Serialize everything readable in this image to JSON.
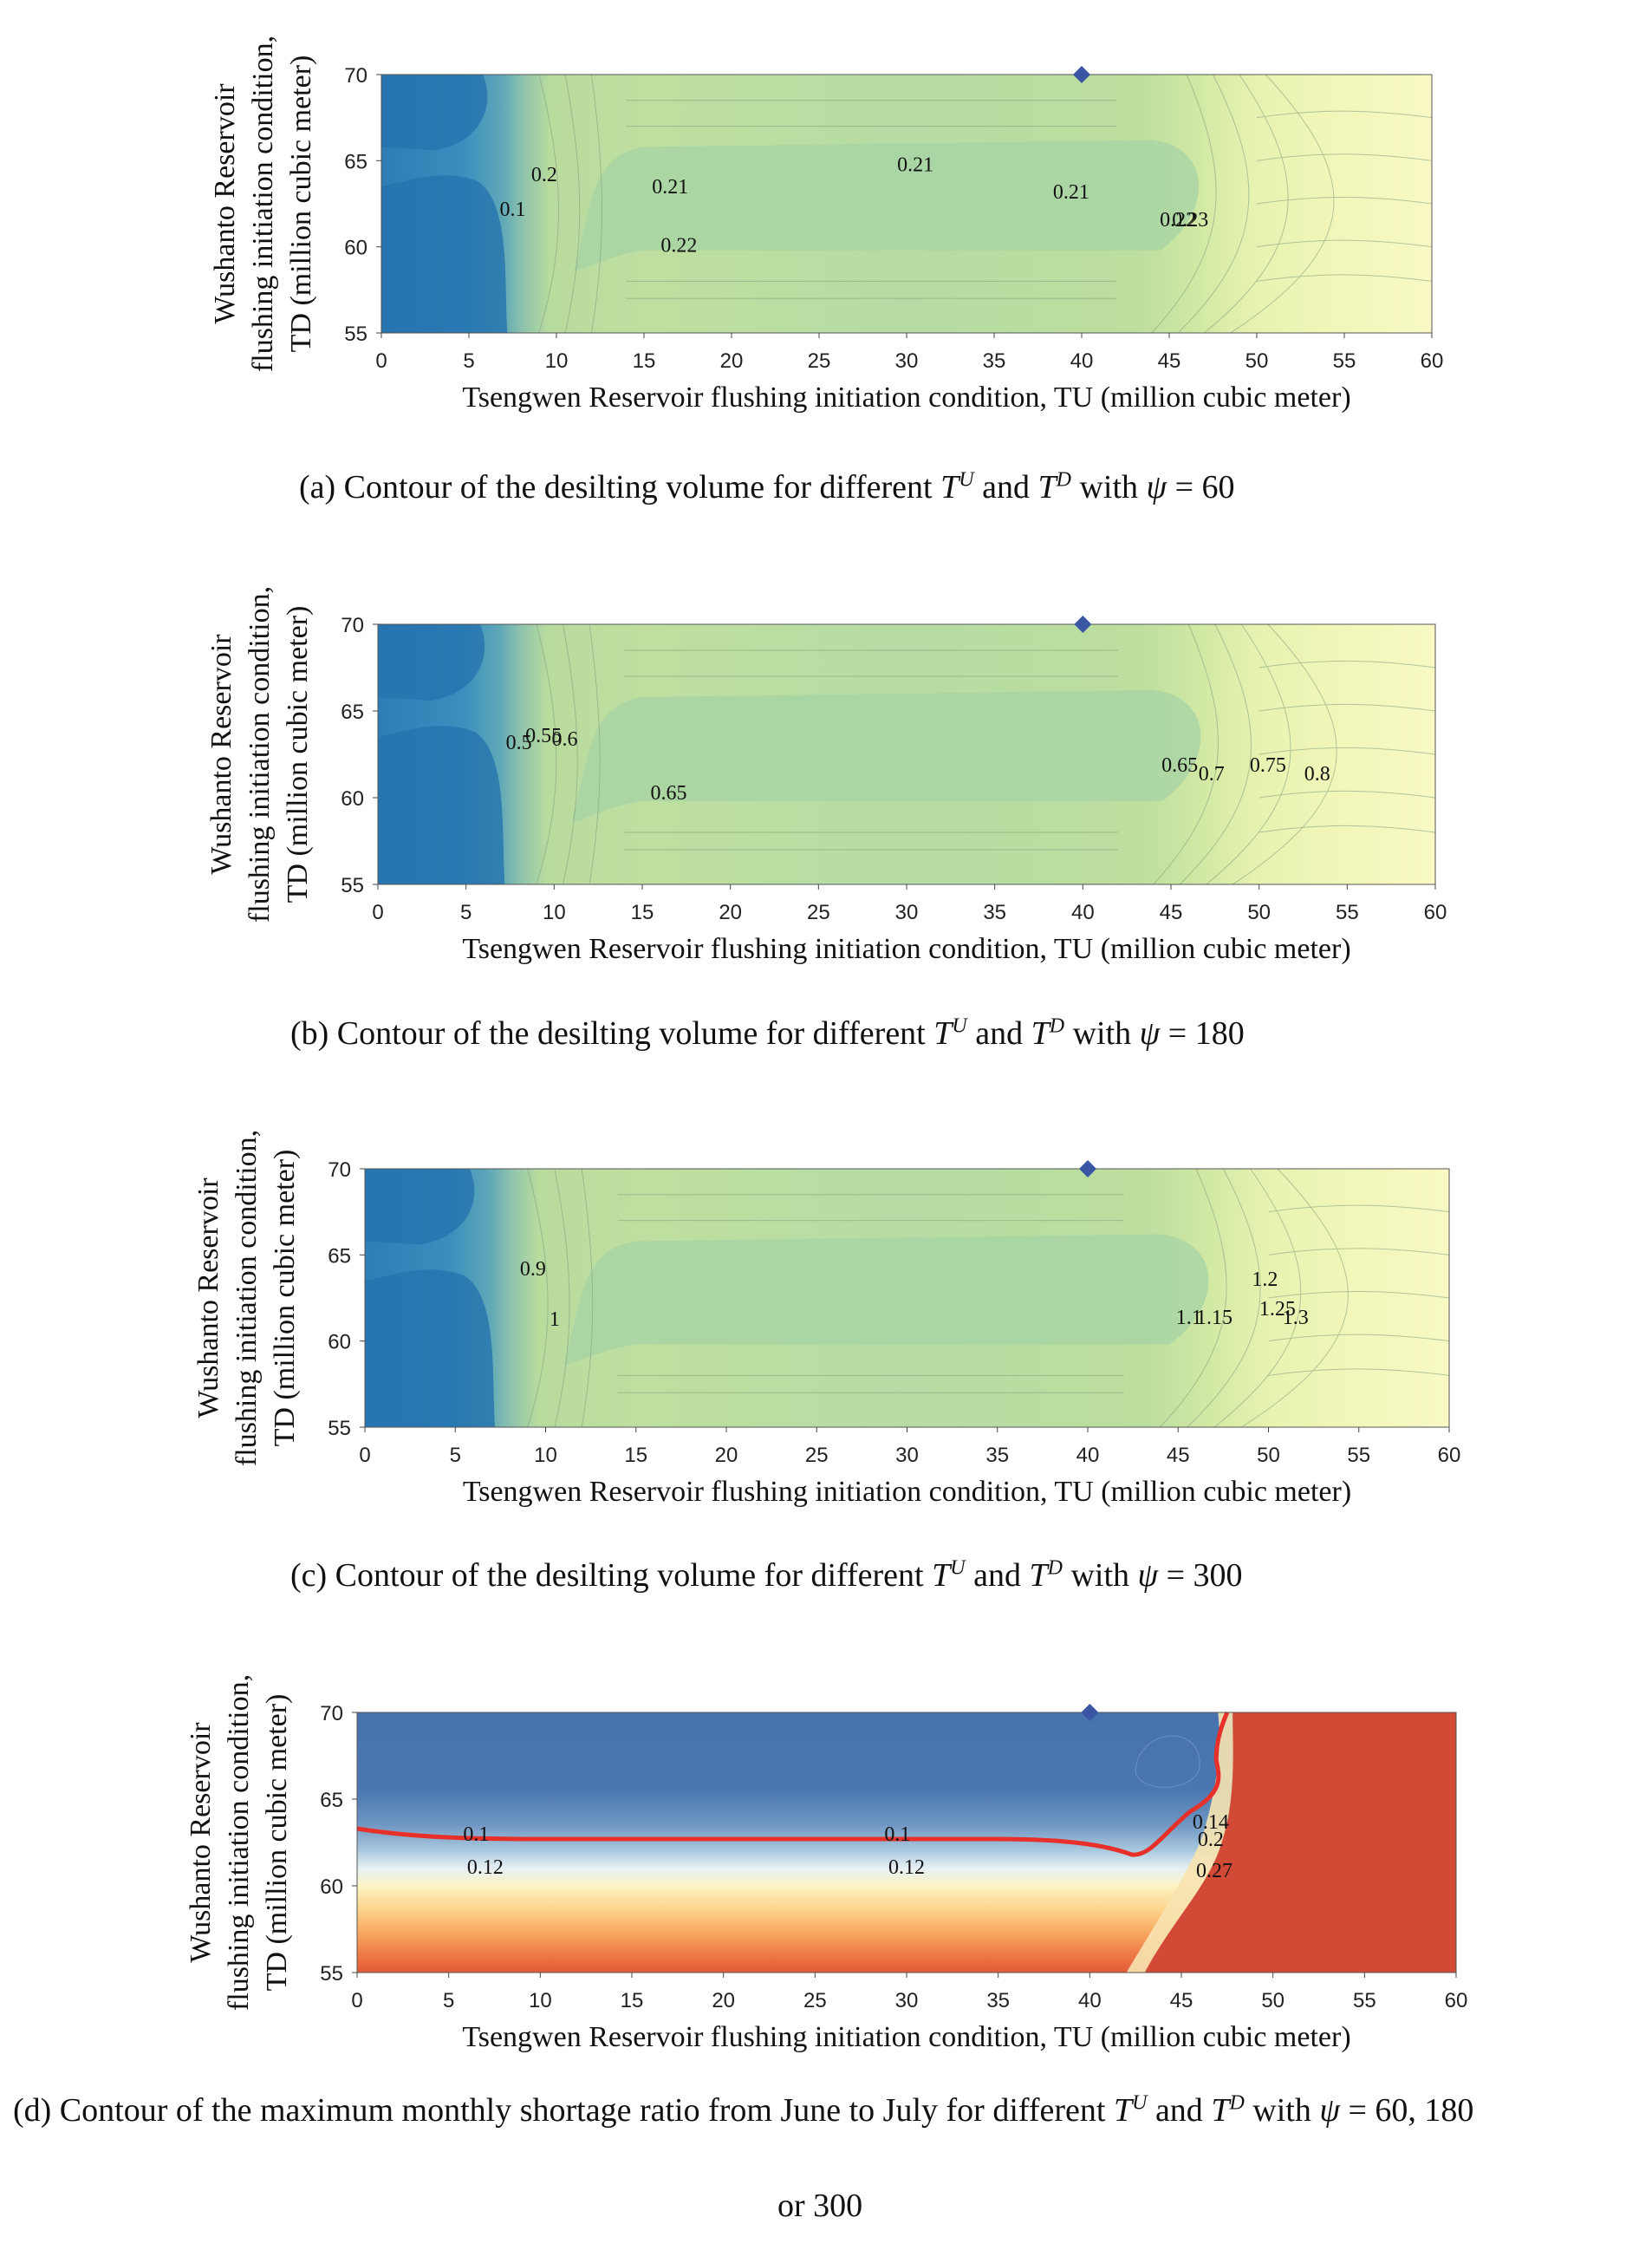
{
  "chart_data": [
    {
      "type": "contour",
      "caption": {
        "prefix": "(a) Contour of the desilting volume for different ",
        "T": "T",
        "U": "U",
        "and": " and ",
        "T2": "T",
        "D": "D",
        "with": " with ",
        "psi": "ψ",
        "suffix": " = 60"
      },
      "xlabel": "Tsengwen Reservoir flushing initiation condition, TU (million cubic meter)",
      "ylabel_lines": [
        "Wushanto Reservoir",
        "flushing initiation condition,",
        "TD (million cubic meter)"
      ],
      "xlim": [
        0,
        60
      ],
      "ylim": [
        55,
        70
      ],
      "xticks": [
        "0",
        "5",
        "10",
        "15",
        "20",
        "25",
        "30",
        "35",
        "40",
        "45",
        "50",
        "55",
        "60"
      ],
      "yticks": [
        "55",
        "60",
        "65",
        "70"
      ],
      "marker": {
        "x": 40,
        "y": 70,
        "shape": "diamond",
        "color": "#3A55A4"
      },
      "contour_labels": [
        {
          "text": "0.21",
          "x": 16.5,
          "y": 63.1
        },
        {
          "text": "0.21",
          "x": 30.5,
          "y": 64.4
        },
        {
          "text": "0.21",
          "x": 39.4,
          "y": 62.8
        },
        {
          "text": "0.22",
          "x": 17,
          "y": 59.7
        },
        {
          "text": "0.22",
          "x": 45.5,
          "y": 61.2
        },
        {
          "text": "0.23",
          "x": 46.2,
          "y": 61.2
        },
        {
          "text": "0.1",
          "x": 7.5,
          "y": 61.8
        },
        {
          "text": "0.2",
          "x": 9.3,
          "y": 63.8
        }
      ]
    },
    {
      "type": "contour",
      "caption": {
        "prefix": "(b) Contour of the desilting volume for different ",
        "T": "T",
        "U": "U",
        "and": " and ",
        "T2": "T",
        "D": "D",
        "with": " with ",
        "psi": "ψ",
        "suffix": " = 180"
      },
      "xlabel": "Tsengwen Reservoir flushing initiation condition, TU (million cubic meter)",
      "ylabel_lines": [
        "Wushanto Reservoir",
        "flushing initiation condition,",
        "TD (million cubic meter)"
      ],
      "xlim": [
        0,
        60
      ],
      "ylim": [
        55,
        70
      ],
      "xticks": [
        "0",
        "5",
        "10",
        "15",
        "20",
        "25",
        "30",
        "35",
        "40",
        "45",
        "50",
        "55",
        "60"
      ],
      "yticks": [
        "55",
        "60",
        "65",
        "70"
      ],
      "marker": {
        "x": 40,
        "y": 70,
        "shape": "diamond",
        "color": "#3A55A4"
      },
      "contour_labels": [
        {
          "text": "0.65",
          "x": 16.5,
          "y": 59.9
        },
        {
          "text": "0.65",
          "x": 45.5,
          "y": 61.5
        },
        {
          "text": "0.7",
          "x": 47.3,
          "y": 61.0
        },
        {
          "text": "0.75",
          "x": 50.5,
          "y": 61.5
        },
        {
          "text": "0.8",
          "x": 53.3,
          "y": 61.0
        },
        {
          "text": "0.5",
          "x": 8.0,
          "y": 62.8
        },
        {
          "text": "0.55",
          "x": 9.4,
          "y": 63.2
        },
        {
          "text": "0.6",
          "x": 10.6,
          "y": 63.0
        }
      ]
    },
    {
      "type": "contour",
      "caption": {
        "prefix": "(c) Contour of the desilting volume for different ",
        "T": "T",
        "U": "U",
        "and": " and ",
        "T2": "T",
        "D": "D",
        "with": " with ",
        "psi": "ψ",
        "suffix": " = 300"
      },
      "xlabel": "Tsengwen Reservoir flushing initiation condition, TU (million cubic meter)",
      "ylabel_lines": [
        "Wushanto Reservoir",
        "flushing initiation condition,",
        "TD (million cubic meter)"
      ],
      "xlim": [
        0,
        60
      ],
      "ylim": [
        55,
        70
      ],
      "xticks": [
        "0",
        "5",
        "10",
        "15",
        "20",
        "25",
        "30",
        "35",
        "40",
        "45",
        "50",
        "55",
        "60"
      ],
      "yticks": [
        "55",
        "60",
        "65",
        "70"
      ],
      "marker": {
        "x": 40,
        "y": 70,
        "shape": "diamond",
        "color": "#3A55A4"
      },
      "contour_labels": [
        {
          "text": "1.1",
          "x": 45.6,
          "y": 61.0
        },
        {
          "text": "1.15",
          "x": 47.0,
          "y": 61.0
        },
        {
          "text": "1.2",
          "x": 49.8,
          "y": 63.2
        },
        {
          "text": "1.25",
          "x": 50.5,
          "y": 61.5
        },
        {
          "text": "1.3",
          "x": 51.5,
          "y": 61.0
        },
        {
          "text": "0.9",
          "x": 9.3,
          "y": 63.8
        },
        {
          "text": "1",
          "x": 10.5,
          "y": 60.9
        }
      ]
    },
    {
      "type": "contour",
      "caption": {
        "prefix": "(d) Contour of the maximum monthly shortage ratio from June to July for different ",
        "T": "T",
        "U": "U",
        "and": " and ",
        "T2": "T",
        "D": "D",
        "with": " with ",
        "psi": "ψ",
        "suffix": " = 60, 180",
        "line2": "or 300"
      },
      "xlabel": "Tsengwen Reservoir flushing initiation condition, TU (million cubic meter)",
      "ylabel_lines": [
        "Wushanto Reservoir",
        "flushing initiation condition,",
        "TD (million cubic meter)"
      ],
      "xlim": [
        0,
        60
      ],
      "ylim": [
        55,
        70
      ],
      "xticks": [
        "0",
        "5",
        "10",
        "15",
        "20",
        "25",
        "30",
        "35",
        "40",
        "45",
        "50",
        "55",
        "60"
      ],
      "yticks": [
        "55",
        "60",
        "65",
        "70"
      ],
      "marker": {
        "x": 40,
        "y": 70,
        "shape": "diamond",
        "color": "#3A55A4"
      },
      "highlight_contour": {
        "level": 0.1,
        "color": "#E8302A"
      },
      "contour_labels": [
        {
          "text": "0.1",
          "x": 6.5,
          "y": 62.6
        },
        {
          "text": "0.1",
          "x": 29.5,
          "y": 62.6
        },
        {
          "text": "0.12",
          "x": 7.0,
          "y": 60.7
        },
        {
          "text": "0.12",
          "x": 30.0,
          "y": 60.7
        },
        {
          "text": "0.14",
          "x": 46.6,
          "y": 63.3
        },
        {
          "text": "0.2",
          "x": 46.6,
          "y": 62.3
        },
        {
          "text": "0.27",
          "x": 46.8,
          "y": 60.5
        }
      ]
    }
  ]
}
